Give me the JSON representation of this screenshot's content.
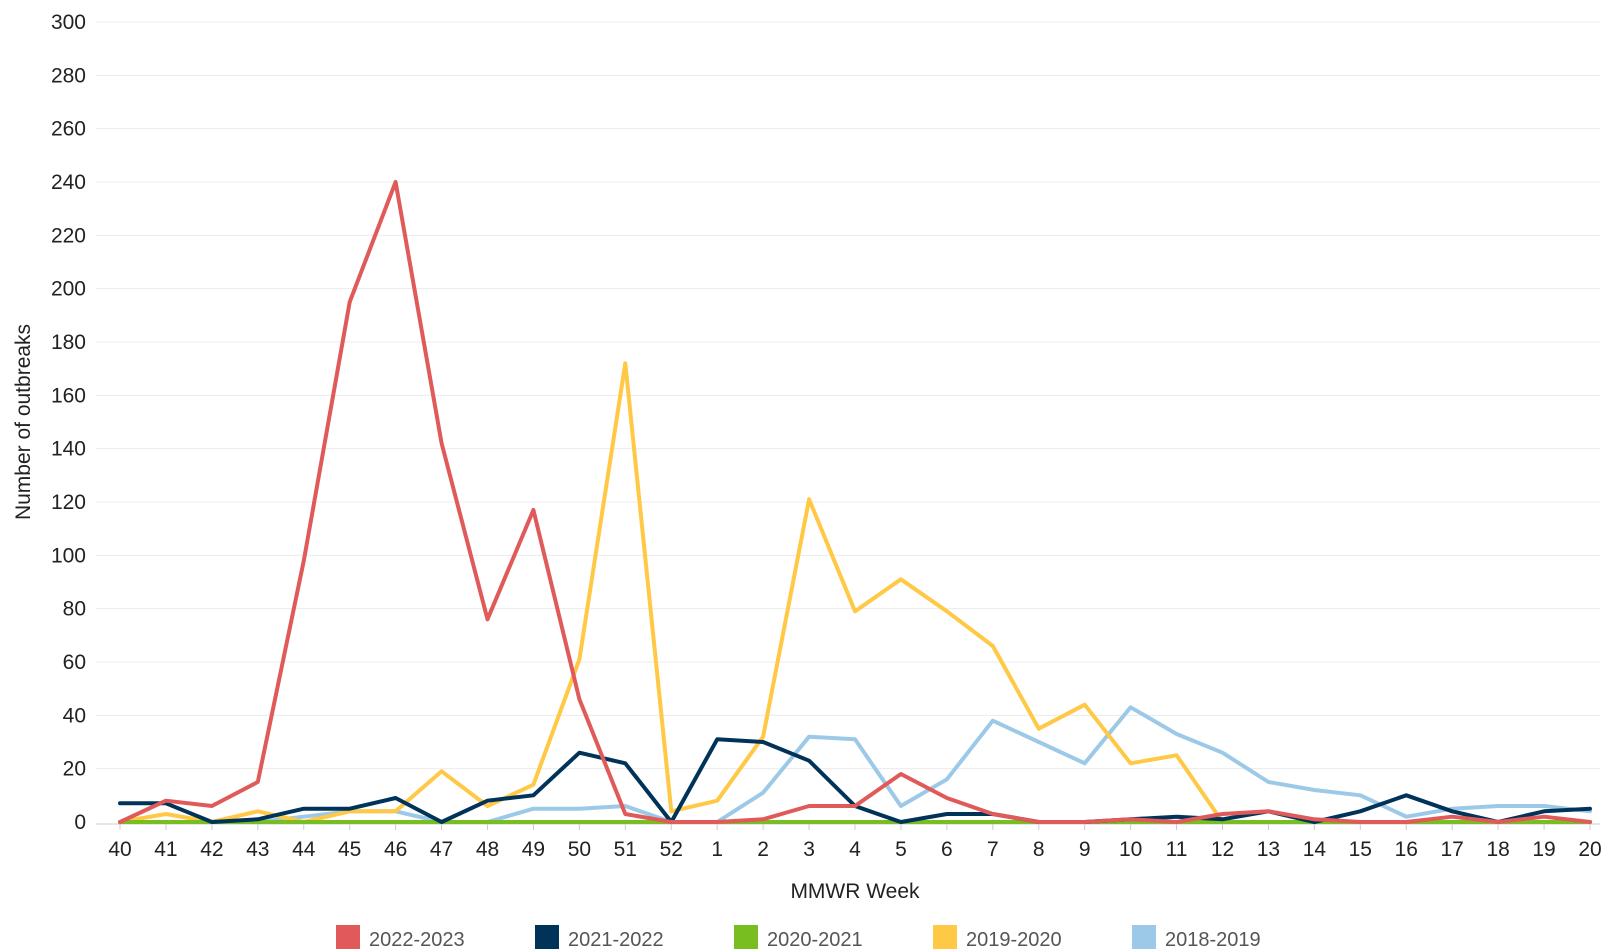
{
  "chart_data": {
    "type": "line",
    "title": "",
    "xlabel": "MMWR Week",
    "ylabel": "Number of outbreaks",
    "ylim": [
      0,
      300
    ],
    "yticks": [
      0,
      20,
      40,
      60,
      80,
      100,
      120,
      140,
      160,
      180,
      200,
      220,
      240,
      260,
      280,
      300
    ],
    "grid": true,
    "legend_position": "bottom",
    "categories": [
      "40",
      "41",
      "42",
      "43",
      "44",
      "45",
      "46",
      "47",
      "48",
      "49",
      "50",
      "51",
      "52",
      "1",
      "2",
      "3",
      "4",
      "5",
      "6",
      "7",
      "8",
      "9",
      "10",
      "11",
      "12",
      "13",
      "14",
      "15",
      "16",
      "17",
      "18",
      "19",
      "20"
    ],
    "series": [
      {
        "name": "2018-2019",
        "color": "#9dc9e8",
        "values": [
          0,
          0,
          0,
          0,
          2,
          4,
          4,
          0,
          0,
          5,
          5,
          6,
          0,
          0,
          11,
          32,
          31,
          6,
          16,
          38,
          30,
          22,
          43,
          33,
          26,
          15,
          12,
          10,
          2,
          5,
          6,
          6,
          4
        ]
      },
      {
        "name": "2019-2020",
        "color": "#ffc845",
        "values": [
          0,
          3,
          0,
          4,
          0,
          4,
          4,
          19,
          6,
          14,
          61,
          172,
          4,
          8,
          32,
          121,
          79,
          91,
          79,
          66,
          35,
          44,
          22,
          25,
          0,
          0,
          0,
          0,
          0,
          0,
          0,
          0,
          0
        ]
      },
      {
        "name": "2020-2021",
        "color": "#78be21",
        "values": [
          0,
          0,
          0,
          0,
          0,
          0,
          0,
          0,
          0,
          0,
          0,
          0,
          0,
          0,
          0,
          0,
          0,
          0,
          0,
          0,
          0,
          0,
          0,
          0,
          0,
          0,
          0,
          0,
          0,
          0,
          0,
          0,
          0
        ]
      },
      {
        "name": "2021-2022",
        "color": "#003359",
        "values": [
          7,
          7,
          0,
          1,
          5,
          5,
          9,
          0,
          8,
          10,
          26,
          22,
          0,
          31,
          30,
          23,
          6,
          0,
          3,
          3,
          0,
          0,
          1,
          2,
          1,
          4,
          0,
          4,
          10,
          4,
          0,
          4,
          5
        ]
      },
      {
        "name": "2022-2023",
        "color": "#e05a5a",
        "values": [
          0,
          8,
          6,
          15,
          98,
          195,
          240,
          142,
          76,
          117,
          46,
          3,
          0,
          0,
          1,
          6,
          6,
          18,
          9,
          3,
          0,
          0,
          1,
          0,
          3,
          4,
          1,
          0,
          0,
          2,
          0,
          2,
          0
        ]
      }
    ],
    "legend": [
      {
        "name": "2022-2023",
        "color": "#e05a5a"
      },
      {
        "name": "2021-2022",
        "color": "#003359"
      },
      {
        "name": "2020-2021",
        "color": "#78be21"
      },
      {
        "name": "2019-2020",
        "color": "#ffc845"
      },
      {
        "name": "2018-2019",
        "color": "#9dc9e8"
      }
    ]
  }
}
